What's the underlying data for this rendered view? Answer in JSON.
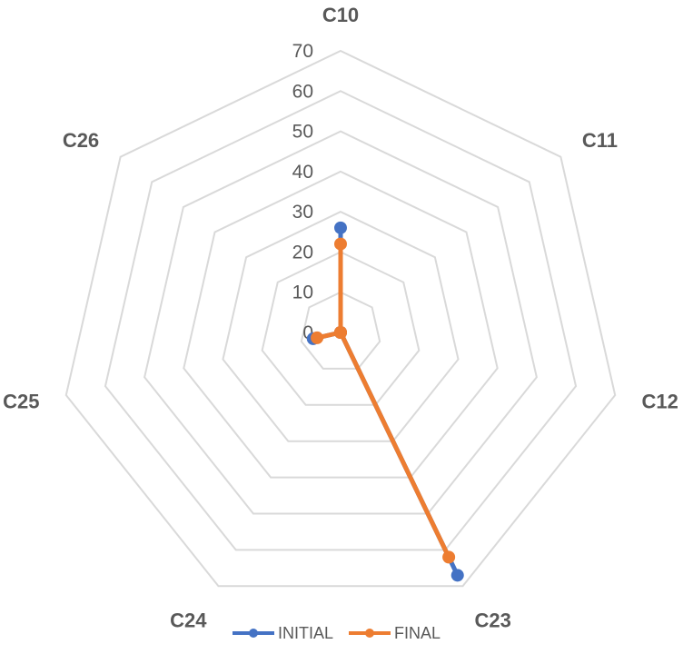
{
  "chart_data": {
    "type": "radar",
    "title": "",
    "categories": [
      "C10",
      "C11",
      "C12",
      "C23",
      "C24",
      "C25",
      "C26"
    ],
    "rlim": [
      0,
      70
    ],
    "ticks": [
      "0",
      "10",
      "20",
      "30",
      "40",
      "50",
      "60",
      "70"
    ],
    "grid": true,
    "legend_position": "bottom",
    "series": [
      {
        "name": "INITIAL",
        "color": "#4472c4",
        "values": [
          26,
          0,
          0,
          67,
          0,
          7,
          0
        ]
      },
      {
        "name": "FINAL",
        "color": "#ed7d31",
        "values": [
          22,
          0,
          0,
          62,
          0,
          6,
          0
        ]
      }
    ]
  }
}
